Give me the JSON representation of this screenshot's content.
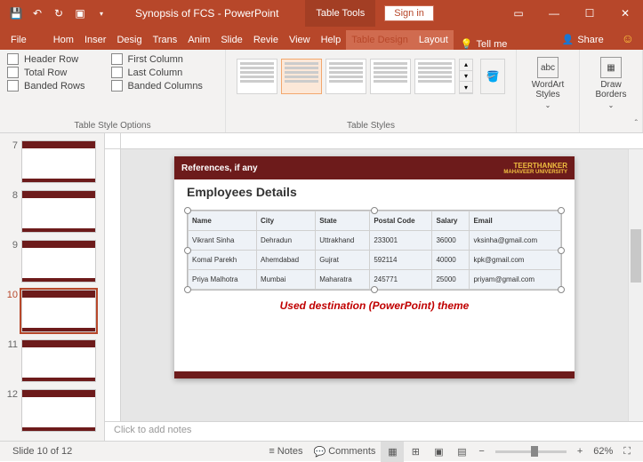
{
  "titlebar": {
    "doc_title": "Synopsis of FCS - PowerPoint",
    "tool_context": "Table Tools",
    "signin": "Sign in"
  },
  "tabs": {
    "file": "File",
    "list": [
      "Hom",
      "Inser",
      "Desig",
      "Trans",
      "Anim",
      "Slide",
      "Revie",
      "View",
      "Help"
    ],
    "context": [
      "Table Design",
      "Layout"
    ],
    "tellme": "Tell me",
    "share": "Share"
  },
  "ribbon": {
    "opts": {
      "header_row": "Header Row",
      "total_row": "Total Row",
      "banded_rows": "Banded Rows",
      "first_col": "First Column",
      "last_col": "Last Column",
      "banded_cols": "Banded Columns",
      "group": "Table Style Options"
    },
    "styles_group": "Table Styles",
    "wordart": "WordArt Styles",
    "borders": "Draw Borders"
  },
  "thumbs": [
    7,
    8,
    9,
    10,
    11,
    12
  ],
  "active_slide": 10,
  "slide": {
    "ref": "References, if any",
    "uni1": "TEERTHANKER",
    "uni2": "MAHAVEER UNIVERSITY",
    "title": "Employees Details",
    "headers": [
      "Name",
      "City",
      "State",
      "Postal Code",
      "Salary",
      "Email"
    ],
    "rows": [
      [
        "Vikrant Sinha",
        "Dehradun",
        "Uttrakhand",
        "233001",
        "36000",
        "vksinha@gmail.com"
      ],
      [
        "Komal Parekh",
        "Ahemdabad",
        "Gujrat",
        "592114",
        "40000",
        "kpk@gmail.com"
      ],
      [
        "Priya Malhotra",
        "Mumbai",
        "Maharatra",
        "245771",
        "25000",
        "priyam@gmail.com"
      ]
    ],
    "caption": "Used destination (PowerPoint) theme"
  },
  "notes": "Click to add notes",
  "status": {
    "slide_of": "Slide 10 of 12",
    "notes": "Notes",
    "comments": "Comments",
    "zoom": "62%"
  }
}
